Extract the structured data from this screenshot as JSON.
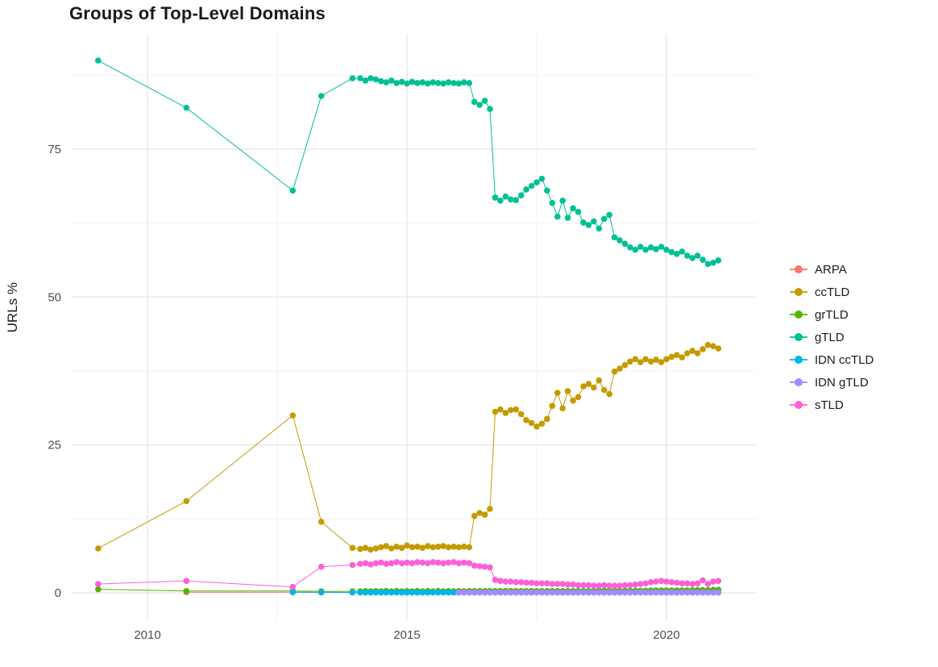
{
  "title": "Groups of Top-Level Domains",
  "chart_data": {
    "type": "line",
    "title": "Groups of Top-Level Domains",
    "xlabel": "",
    "ylabel": "URLs %",
    "xlim": [
      2008.53,
      2021.72
    ],
    "ylim": [
      -4.8,
      94.5
    ],
    "grid": true,
    "legend_position": "right",
    "x_ticks": [
      2010,
      2015,
      2020
    ],
    "x_tick_labels": [
      "2010",
      "2015",
      "2020"
    ],
    "y_ticks": [
      0,
      25,
      50,
      75
    ],
    "y_tick_labels": [
      "0",
      "25",
      "50",
      "75"
    ],
    "x_minor_gridlines": [
      2012.5,
      2017.5
    ],
    "y_minor_gridlines": [
      12.5,
      37.5,
      62.5,
      87.5
    ],
    "x": [
      2009.05,
      2010.75,
      2012.8,
      2013.35,
      2013.95,
      2014.1,
      2014.2,
      2014.3,
      2014.4,
      2014.5,
      2014.6,
      2014.7,
      2014.8,
      2014.9,
      2015.0,
      2015.1,
      2015.2,
      2015.3,
      2015.4,
      2015.5,
      2015.6,
      2015.7,
      2015.8,
      2015.9,
      2016.0,
      2016.1,
      2016.2,
      2016.3,
      2016.4,
      2016.5,
      2016.6,
      2016.7,
      2016.8,
      2016.9,
      2017.0,
      2017.1,
      2017.2,
      2017.3,
      2017.4,
      2017.5,
      2017.6,
      2017.7,
      2017.8,
      2017.9,
      2018.0,
      2018.1,
      2018.2,
      2018.3,
      2018.4,
      2018.5,
      2018.6,
      2018.7,
      2018.8,
      2018.9,
      2019.0,
      2019.1,
      2019.2,
      2019.3,
      2019.4,
      2019.5,
      2019.6,
      2019.7,
      2019.8,
      2019.9,
      2020.0,
      2020.1,
      2020.2,
      2020.3,
      2020.4,
      2020.5,
      2020.6,
      2020.7,
      2020.8,
      2020.9,
      2021.0
    ],
    "series": [
      {
        "name": "ARPA",
        "color": "#F8766D",
        "values": [
          null,
          0.1,
          0.1,
          0.05,
          0.05,
          0.05,
          0.05,
          0.05,
          0.05,
          0.05,
          0.05,
          0.05,
          0.05,
          0.05,
          0.05,
          0.05,
          0.05,
          0.05,
          0.05,
          0.05,
          0.05,
          0.05,
          0.05,
          0.05,
          0.05,
          0.05,
          0.05,
          0.05,
          0.05,
          0.05,
          0.05,
          0.05,
          0.05,
          0.05,
          0.05,
          0.05,
          0.05,
          0.05,
          0.05,
          0.05,
          0.05,
          0.05,
          0.05,
          0.05,
          0.05,
          0.05,
          0.05,
          0.05,
          0.05,
          0.05,
          0.05,
          0.05,
          0.05,
          0.05,
          0.05,
          0.05,
          0.05,
          0.05,
          0.05,
          0.05,
          0.05,
          0.05,
          0.05,
          0.05,
          0.05,
          0.05,
          0.05,
          0.05,
          0.05,
          0.05,
          0.05,
          0.05,
          0.05,
          0.05,
          0.05
        ]
      },
      {
        "name": "ccTLD",
        "color": "#C49A00",
        "values": [
          7.5,
          15.5,
          30,
          12,
          7.6,
          7.4,
          7.6,
          7.3,
          7.5,
          7.7,
          7.9,
          7.5,
          7.8,
          7.6,
          8.0,
          7.7,
          7.8,
          7.6,
          7.9,
          7.7,
          7.8,
          7.9,
          7.7,
          7.8,
          7.7,
          7.8,
          7.7,
          13.0,
          13.5,
          13.2,
          14.2,
          30.6,
          31.0,
          30.4,
          30.9,
          31.0,
          30.2,
          29.2,
          28.7,
          28.1,
          28.6,
          29.4,
          31.6,
          33.8,
          31.2,
          34.1,
          32.5,
          33.1,
          34.9,
          35.3,
          34.7,
          35.9,
          34.3,
          33.6,
          37.4,
          37.9,
          38.5,
          39.1,
          39.5,
          39.0,
          39.5,
          39.1,
          39.4,
          39.0,
          39.5,
          39.9,
          40.2,
          39.8,
          40.5,
          40.9,
          40.5,
          41.2,
          41.9,
          41.7,
          41.3
        ]
      },
      {
        "name": "grTLD",
        "color": "#53B400",
        "values": [
          0.6,
          0.3,
          0.3,
          0.25,
          0.25,
          0.25,
          0.3,
          0.25,
          0.3,
          0.25,
          0.3,
          0.25,
          0.3,
          0.25,
          0.3,
          0.25,
          0.3,
          0.25,
          0.3,
          0.25,
          0.3,
          0.25,
          0.3,
          0.25,
          0.3,
          0.25,
          0.3,
          0.3,
          0.3,
          0.3,
          0.3,
          0.3,
          0.3,
          0.3,
          0.3,
          0.3,
          0.3,
          0.3,
          0.3,
          0.3,
          0.3,
          0.3,
          0.3,
          0.3,
          0.3,
          0.3,
          0.3,
          0.3,
          0.3,
          0.3,
          0.3,
          0.35,
          0.35,
          0.35,
          0.35,
          0.35,
          0.35,
          0.35,
          0.35,
          0.35,
          0.35,
          0.4,
          0.4,
          0.4,
          0.4,
          0.4,
          0.4,
          0.4,
          0.4,
          0.45,
          0.45,
          0.45,
          0.45,
          0.5,
          0.5
        ]
      },
      {
        "name": "gTLD",
        "color": "#00C094",
        "values": [
          90,
          82,
          68,
          84,
          87,
          87,
          86.6,
          87,
          86.8,
          86.5,
          86.3,
          86.6,
          86.2,
          86.4,
          86.1,
          86.4,
          86.2,
          86.3,
          86.1,
          86.3,
          86.2,
          86.1,
          86.3,
          86.2,
          86.1,
          86.3,
          86.2,
          83,
          82.5,
          83.2,
          81.8,
          66.8,
          66.3,
          67.0,
          66.5,
          66.4,
          67.2,
          68.2,
          68.8,
          69.4,
          70.0,
          68.0,
          65.9,
          63.6,
          66.3,
          63.4,
          65.0,
          64.4,
          62.6,
          62.2,
          62.8,
          61.6,
          63.2,
          63.9,
          60.1,
          59.6,
          59.0,
          58.4,
          58.0,
          58.5,
          58.0,
          58.4,
          58.1,
          58.5,
          58.0,
          57.6,
          57.3,
          57.7,
          57.0,
          56.6,
          57.0,
          56.3,
          55.6,
          55.8,
          56.2
        ]
      },
      {
        "name": "IDN ccTLD",
        "color": "#00B6EB",
        "values": [
          null,
          null,
          0.1,
          0.1,
          0.05,
          0.05,
          0.05,
          0.05,
          0.05,
          0.05,
          0.05,
          0.05,
          0.05,
          0.05,
          0.05,
          0.05,
          0.05,
          0.05,
          0.05,
          0.05,
          0.05,
          0.05,
          0.05,
          0.05,
          0.05,
          0.05,
          0.05,
          0.05,
          0.05,
          0.05,
          0.05,
          0.05,
          0.05,
          0.05,
          0.05,
          0.05,
          0.05,
          0.05,
          0.05,
          0.05,
          0.05,
          0.05,
          0.05,
          0.05,
          0.05,
          0.05,
          0.05,
          0.05,
          0.05,
          0.05,
          0.05,
          0.05,
          0.05,
          0.05,
          0.05,
          0.05,
          0.05,
          0.05,
          0.05,
          0.05,
          0.05,
          0.05,
          0.05,
          0.05,
          0.05,
          0.05,
          0.05,
          0.05,
          0.05,
          0.05,
          0.05,
          0.05,
          0.05,
          0.05,
          0.05
        ]
      },
      {
        "name": "IDN gTLD",
        "color": "#A58AFF",
        "values": [
          null,
          null,
          null,
          null,
          null,
          null,
          null,
          null,
          null,
          null,
          null,
          null,
          null,
          null,
          null,
          null,
          null,
          null,
          null,
          null,
          null,
          null,
          null,
          null,
          0.05,
          0.05,
          0.05,
          0.05,
          0.05,
          0.05,
          0.05,
          0.05,
          0.05,
          0.05,
          0.05,
          0.05,
          0.05,
          0.05,
          0.05,
          0.05,
          0.05,
          0.05,
          0.05,
          0.05,
          0.05,
          0.05,
          0.05,
          0.05,
          0.05,
          0.05,
          0.05,
          0.05,
          0.05,
          0.05,
          0.05,
          0.05,
          0.05,
          0.05,
          0.05,
          0.05,
          0.05,
          0.05,
          0.05,
          0.05,
          0.05,
          0.05,
          0.05,
          0.05,
          0.05,
          0.05,
          0.05,
          0.05,
          0.05,
          0.05,
          0.05
        ]
      },
      {
        "name": "sTLD",
        "color": "#FB61D7",
        "values": [
          1.5,
          2.0,
          1.0,
          4.4,
          4.7,
          4.9,
          5.0,
          4.8,
          5.0,
          5.1,
          4.9,
          5.0,
          5.2,
          5.0,
          5.1,
          5.0,
          5.2,
          5.1,
          5.0,
          5.2,
          5.1,
          5.0,
          5.1,
          5.2,
          5.0,
          5.1,
          5.0,
          4.6,
          4.5,
          4.4,
          4.3,
          2.2,
          2.0,
          1.9,
          1.9,
          1.8,
          1.8,
          1.7,
          1.7,
          1.6,
          1.6,
          1.6,
          1.5,
          1.5,
          1.5,
          1.4,
          1.4,
          1.3,
          1.3,
          1.3,
          1.2,
          1.2,
          1.3,
          1.2,
          1.2,
          1.2,
          1.3,
          1.3,
          1.4,
          1.5,
          1.6,
          1.8,
          1.9,
          2.0,
          1.9,
          1.8,
          1.7,
          1.6,
          1.6,
          1.5,
          1.6,
          2.1,
          1.5,
          1.9,
          2.0
        ]
      }
    ]
  },
  "style": {
    "grid_major_color": "#e4e4e4",
    "grid_minor_color": "#f2f2f2",
    "tick_label_color": "#4d4d4d",
    "point_radius": 3.8,
    "line_width": 1
  }
}
